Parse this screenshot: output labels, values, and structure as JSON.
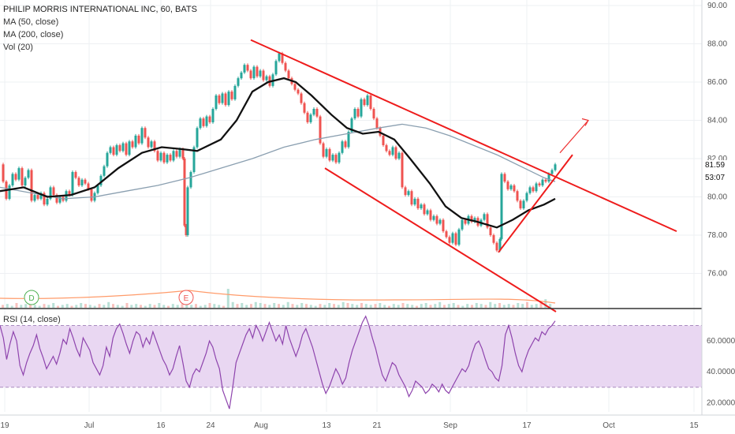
{
  "chart_data": [
    {
      "type": "line",
      "title": "PHILIP MORRIS INTERNATIONAL INC, 60, BATS",
      "series": [
        {
          "name": "MA (50, close)"
        },
        {
          "name": "MA (200, close)"
        },
        {
          "name": "Vol (20)"
        }
      ],
      "price_axis_ticks": [
        "90.00",
        "88.00",
        "86.00",
        "84.00",
        "82.00",
        "80.00",
        "78.00",
        "76.00"
      ],
      "ylim": [
        74.0,
        90.0
      ],
      "current_price_label": "81.59",
      "countdown_label": "53:07",
      "x_tick_labels": [
        "19",
        "Jul",
        "16",
        "24",
        "Aug",
        "13",
        "21",
        "Sep",
        "17",
        "Oct",
        "15"
      ],
      "price_path": [
        [
          0,
          81.7
        ],
        [
          4,
          80.8
        ],
        [
          8,
          79.9
        ],
        [
          12,
          80.6
        ],
        [
          16,
          81.2
        ],
        [
          20,
          80.9
        ],
        [
          24,
          81.5
        ],
        [
          28,
          80.6
        ],
        [
          32,
          81.0
        ],
        [
          36,
          81.4
        ],
        [
          40,
          79.8
        ],
        [
          44,
          80.1
        ],
        [
          48,
          79.9
        ],
        [
          52,
          80.2
        ],
        [
          56,
          79.6
        ],
        [
          60,
          79.9
        ],
        [
          64,
          80.5
        ],
        [
          68,
          80.1
        ],
        [
          72,
          79.7
        ],
        [
          76,
          80.0
        ],
        [
          80,
          79.8
        ],
        [
          84,
          80.3
        ],
        [
          88,
          80.1
        ],
        [
          92,
          81.3
        ],
        [
          96,
          81.0
        ],
        [
          100,
          80.6
        ],
        [
          104,
          80.9
        ],
        [
          108,
          80.7
        ],
        [
          112,
          80.4
        ],
        [
          116,
          79.8
        ],
        [
          120,
          80.2
        ],
        [
          124,
          80.6
        ],
        [
          128,
          81.1
        ],
        [
          132,
          81.6
        ],
        [
          136,
          82.3
        ],
        [
          140,
          82.6
        ],
        [
          144,
          82.2
        ],
        [
          148,
          82.7
        ],
        [
          152,
          82.4
        ],
        [
          156,
          82.8
        ],
        [
          160,
          82.2
        ],
        [
          164,
          82.9
        ],
        [
          168,
          82.6
        ],
        [
          172,
          83.2
        ],
        [
          176,
          82.8
        ],
        [
          180,
          83.6
        ],
        [
          184,
          83.1
        ],
        [
          188,
          82.6
        ],
        [
          192,
          82.9
        ],
        [
          196,
          82.4
        ],
        [
          200,
          81.9
        ],
        [
          204,
          82.3
        ],
        [
          208,
          81.8
        ],
        [
          212,
          82.2
        ],
        [
          216,
          81.9
        ],
        [
          220,
          82.4
        ],
        [
          224,
          82.1
        ],
        [
          228,
          82.5
        ],
        [
          232,
          82.0
        ],
        [
          234,
          78.5
        ],
        [
          236,
          78.0
        ],
        [
          238,
          80.5
        ],
        [
          242,
          81.3
        ],
        [
          246,
          82.6
        ],
        [
          250,
          83.6
        ],
        [
          254,
          84.1
        ],
        [
          258,
          83.7
        ],
        [
          262,
          84.2
        ],
        [
          266,
          83.9
        ],
        [
          270,
          84.6
        ],
        [
          274,
          85.3
        ],
        [
          278,
          84.9
        ],
        [
          282,
          85.4
        ],
        [
          286,
          84.8
        ],
        [
          290,
          85.5
        ],
        [
          294,
          85.1
        ],
        [
          298,
          85.8
        ],
        [
          302,
          86.2
        ],
        [
          306,
          86.5
        ],
        [
          310,
          86.9
        ],
        [
          314,
          86.6
        ],
        [
          318,
          86.2
        ],
        [
          322,
          86.8
        ],
        [
          326,
          86.3
        ],
        [
          330,
          86.6
        ],
        [
          334,
          86.1
        ],
        [
          338,
          86.3
        ],
        [
          342,
          85.8
        ],
        [
          346,
          86.4
        ],
        [
          350,
          87.1
        ],
        [
          354,
          87.5
        ],
        [
          358,
          87.0
        ],
        [
          362,
          86.6
        ],
        [
          366,
          86.2
        ],
        [
          370,
          85.9
        ],
        [
          374,
          85.6
        ],
        [
          378,
          85.4
        ],
        [
          382,
          84.9
        ],
        [
          386,
          84.4
        ],
        [
          390,
          83.9
        ],
        [
          394,
          84.3
        ],
        [
          398,
          84.6
        ],
        [
          402,
          84.2
        ],
        [
          406,
          82.8
        ],
        [
          410,
          82.1
        ],
        [
          414,
          82.5
        ],
        [
          418,
          81.9
        ],
        [
          422,
          82.2
        ],
        [
          426,
          81.8
        ],
        [
          430,
          82.3
        ],
        [
          434,
          82.9
        ],
        [
          438,
          82.6
        ],
        [
          442,
          83.4
        ],
        [
          446,
          84.1
        ],
        [
          450,
          84.6
        ],
        [
          454,
          84.2
        ],
        [
          458,
          85.1
        ],
        [
          462,
          84.8
        ],
        [
          466,
          85.3
        ],
        [
          470,
          84.6
        ],
        [
          474,
          84.1
        ],
        [
          478,
          83.6
        ],
        [
          482,
          83.2
        ],
        [
          486,
          82.7
        ],
        [
          490,
          82.4
        ],
        [
          494,
          82.2
        ],
        [
          498,
          82.6
        ],
        [
          502,
          82.0
        ],
        [
          506,
          82.3
        ],
        [
          510,
          80.5
        ],
        [
          514,
          80.1
        ],
        [
          518,
          80.3
        ],
        [
          522,
          79.6
        ],
        [
          526,
          79.9
        ],
        [
          530,
          79.4
        ],
        [
          534,
          79.6
        ],
        [
          538,
          79.1
        ],
        [
          542,
          79.3
        ],
        [
          546,
          78.8
        ],
        [
          550,
          79.0
        ],
        [
          554,
          78.6
        ],
        [
          558,
          78.8
        ],
        [
          562,
          78.2
        ],
        [
          566,
          77.9
        ],
        [
          570,
          77.6
        ],
        [
          574,
          78.1
        ],
        [
          578,
          77.5
        ],
        [
          582,
          78.3
        ],
        [
          586,
          78.8
        ],
        [
          590,
          78.6
        ],
        [
          594,
          79.0
        ],
        [
          598,
          78.7
        ],
        [
          602,
          78.9
        ],
        [
          606,
          78.5
        ],
        [
          610,
          78.8
        ],
        [
          614,
          79.1
        ],
        [
          618,
          78.4
        ],
        [
          622,
          78.0
        ],
        [
          626,
          77.6
        ],
        [
          630,
          77.2
        ],
        [
          634,
          77.8
        ],
        [
          636,
          81.2
        ],
        [
          640,
          80.8
        ],
        [
          644,
          80.4
        ],
        [
          648,
          80.6
        ],
        [
          652,
          80.3
        ],
        [
          656,
          79.8
        ],
        [
          660,
          79.4
        ],
        [
          664,
          79.8
        ],
        [
          668,
          80.2
        ],
        [
          672,
          80.5
        ],
        [
          676,
          80.3
        ],
        [
          680,
          80.7
        ],
        [
          684,
          80.6
        ],
        [
          688,
          80.9
        ],
        [
          692,
          80.8
        ],
        [
          696,
          81.2
        ],
        [
          700,
          81.4
        ],
        [
          704,
          81.7
        ]
      ],
      "ma50_path": [
        [
          0,
          80.3
        ],
        [
          30,
          80.5
        ],
        [
          60,
          80.0
        ],
        [
          90,
          80.1
        ],
        [
          120,
          80.5
        ],
        [
          150,
          81.5
        ],
        [
          180,
          82.3
        ],
        [
          205,
          82.6
        ],
        [
          230,
          82.5
        ],
        [
          250,
          82.4
        ],
        [
          280,
          83.0
        ],
        [
          300,
          84.0
        ],
        [
          320,
          85.5
        ],
        [
          340,
          86.0
        ],
        [
          360,
          86.2
        ],
        [
          375,
          86.0
        ],
        [
          395,
          85.3
        ],
        [
          420,
          84.3
        ],
        [
          440,
          83.6
        ],
        [
          460,
          83.3
        ],
        [
          480,
          83.4
        ],
        [
          500,
          83.0
        ],
        [
          520,
          82.0
        ],
        [
          545,
          80.7
        ],
        [
          565,
          79.5
        ],
        [
          585,
          78.9
        ],
        [
          605,
          78.7
        ],
        [
          630,
          78.4
        ],
        [
          650,
          78.8
        ],
        [
          670,
          79.3
        ],
        [
          690,
          79.6
        ],
        [
          704,
          79.9
        ]
      ],
      "ma200_path": [
        [
          0,
          80.5
        ],
        [
          40,
          80.2
        ],
        [
          80,
          79.9
        ],
        [
          120,
          80.0
        ],
        [
          160,
          80.3
        ],
        [
          200,
          80.6
        ],
        [
          240,
          81.0
        ],
        [
          280,
          81.5
        ],
        [
          320,
          82.0
        ],
        [
          360,
          82.6
        ],
        [
          400,
          83.0
        ],
        [
          440,
          83.3
        ],
        [
          480,
          83.6
        ],
        [
          510,
          83.8
        ],
        [
          540,
          83.6
        ],
        [
          570,
          83.2
        ],
        [
          600,
          82.7
        ],
        [
          630,
          82.2
        ],
        [
          660,
          81.6
        ],
        [
          690,
          81.0
        ],
        [
          704,
          80.8
        ]
      ],
      "upper_channel": [
        [
          318,
          88.2
        ],
        [
          858,
          78.2
        ]
      ],
      "lower_channel": [
        [
          412,
          81.5
        ],
        [
          705,
          74.0
        ]
      ],
      "rising_line": [
        [
          632,
          77.1
        ],
        [
          726,
          82.2
        ]
      ],
      "projection_arrow": [
        [
          710,
          82.3
        ],
        [
          746,
          84.0
        ]
      ],
      "events": [
        {
          "label": "D",
          "x": 40
        },
        {
          "label": "E",
          "x": 236
        }
      ],
      "volume_bars": [
        3,
        4,
        2,
        5,
        3,
        4,
        6,
        3,
        2,
        4,
        3,
        5,
        2,
        3,
        4,
        2,
        3,
        5,
        4,
        3,
        2,
        4,
        3,
        6,
        4,
        3,
        2,
        5,
        3,
        4,
        3,
        2,
        4,
        3,
        5,
        3,
        2,
        4,
        3,
        4,
        5,
        3,
        4,
        2,
        3,
        5,
        4,
        3,
        2,
        20,
        6,
        4,
        5,
        3,
        4,
        6,
        5,
        4,
        3,
        5,
        4,
        3,
        6,
        4,
        3,
        5,
        4,
        3,
        2,
        4,
        3,
        5,
        4,
        3,
        6,
        5,
        4,
        3,
        5,
        4,
        3,
        4,
        5,
        3,
        2,
        4,
        3,
        5,
        4,
        3,
        2,
        4,
        5,
        3,
        4,
        6,
        3,
        4,
        5,
        3,
        2,
        4,
        3,
        5,
        4,
        3,
        6,
        4,
        5,
        3,
        4,
        3,
        5,
        4,
        6,
        3,
        4,
        5,
        9,
        4
      ]
    },
    {
      "type": "line",
      "title": "RSI (14, close)",
      "ticks": [
        "60.0000",
        "40.0000",
        "20.0000"
      ],
      "ylim": [
        14,
        80
      ],
      "band": [
        30,
        70
      ],
      "rsi_values": [
        70,
        62,
        48,
        58,
        66,
        60,
        44,
        38,
        46,
        52,
        57,
        64,
        55,
        49,
        42,
        46,
        50,
        45,
        52,
        61,
        58,
        68,
        62,
        55,
        50,
        62,
        58,
        54,
        46,
        42,
        38,
        44,
        56,
        50,
        62,
        68,
        71,
        65,
        58,
        52,
        60,
        66,
        64,
        56,
        62,
        58,
        66,
        60,
        54,
        48,
        44,
        38,
        42,
        50,
        57,
        46,
        34,
        30,
        38,
        42,
        40,
        46,
        52,
        60,
        56,
        48,
        42,
        28,
        22,
        16,
        30,
        46,
        52,
        58,
        64,
        68,
        62,
        70,
        66,
        60,
        66,
        72,
        66,
        60,
        64,
        58,
        70,
        62,
        56,
        50,
        56,
        64,
        68,
        62,
        56,
        48,
        40,
        32,
        26,
        30,
        36,
        42,
        38,
        32,
        36,
        46,
        54,
        60,
        66,
        72,
        76,
        70,
        62,
        55,
        46,
        38,
        34,
        40,
        46,
        44,
        38,
        34,
        30,
        24,
        28,
        34,
        32,
        30,
        26,
        28,
        32,
        30,
        27,
        32,
        28,
        26,
        30,
        34,
        38,
        42,
        40,
        44,
        52,
        58,
        60,
        55,
        48,
        42,
        40,
        36,
        34,
        44,
        64,
        70,
        62,
        52,
        44,
        40,
        48,
        54,
        58,
        62,
        60,
        66,
        64,
        68,
        70,
        73
      ]
    }
  ]
}
